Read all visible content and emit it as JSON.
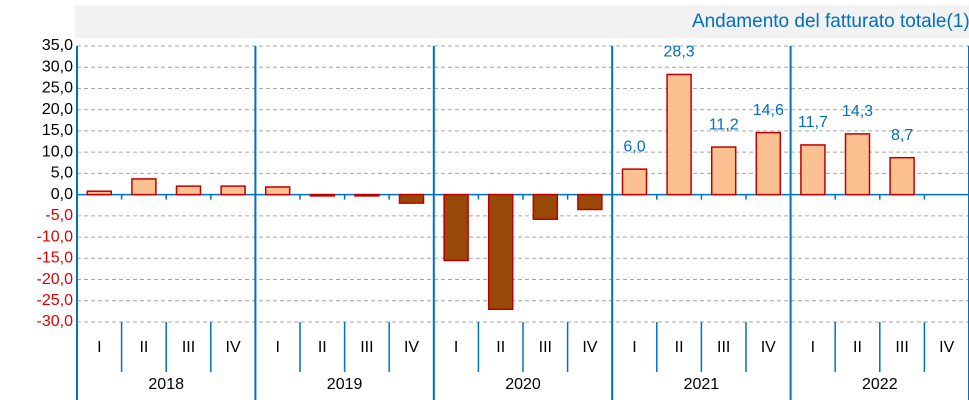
{
  "chart_data": {
    "type": "bar",
    "title": "Andamento del fatturato totale(1).",
    "categories": [
      "I",
      "II",
      "III",
      "IV",
      "I",
      "II",
      "III",
      "IV",
      "I",
      "II",
      "III",
      "IV",
      "I",
      "II",
      "III",
      "IV",
      "I",
      "II",
      "III",
      "IV"
    ],
    "groups": [
      "2018",
      "2019",
      "2020",
      "2021",
      "2022"
    ],
    "values": [
      0.8,
      3.7,
      2.0,
      2.0,
      1.8,
      -0.3,
      -0.3,
      -2.0,
      -15.5,
      -27.0,
      -5.8,
      -3.5,
      6.0,
      28.3,
      11.2,
      14.6,
      11.7,
      14.3,
      8.7,
      null
    ],
    "value_labels": [
      null,
      null,
      null,
      null,
      null,
      null,
      null,
      null,
      null,
      null,
      null,
      null,
      "6,0",
      "28,3",
      "11,2",
      "14,6",
      "11,7",
      "14,3",
      "8,7",
      null
    ],
    "positive_color": "#fac090",
    "negative_color": "#984807",
    "border_color": "#c00000",
    "label_color": "#0070c0",
    "negative_tick_color": "#e00000",
    "ylim": [
      -30,
      35
    ],
    "yticks": [
      {
        "value": 35,
        "label": "35,0"
      },
      {
        "value": 30,
        "label": "30,0"
      },
      {
        "value": 25,
        "label": "25,0"
      },
      {
        "value": 20,
        "label": "20,0"
      },
      {
        "value": 15,
        "label": "15,0"
      },
      {
        "value": 10,
        "label": "10,0"
      },
      {
        "value": 5,
        "label": "5,0"
      },
      {
        "value": 0,
        "label": "0,0"
      },
      {
        "value": -5,
        "label": "-5,0"
      },
      {
        "value": -10,
        "label": "-10,0"
      },
      {
        "value": -15,
        "label": "-15,0"
      },
      {
        "value": -20,
        "label": "-20,0"
      },
      {
        "value": -25,
        "label": "-25,0"
      },
      {
        "value": -30,
        "label": "-30,0"
      }
    ],
    "grid": true
  }
}
